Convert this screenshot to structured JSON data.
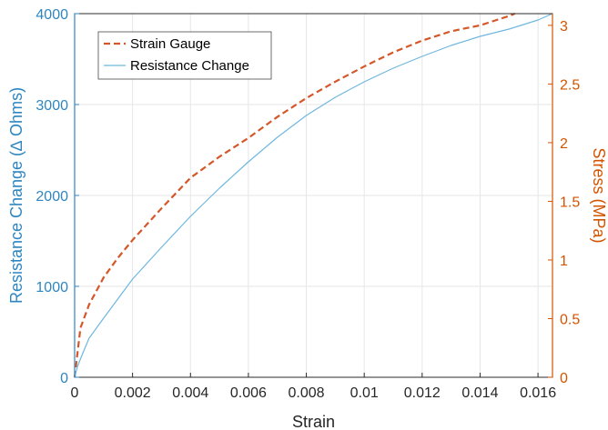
{
  "chart_data": {
    "type": "line",
    "title": "",
    "xlabel": "Strain",
    "ylabel_left": "Resistance Change (∆ Ohms)",
    "ylabel_right": "Stress (MPa)",
    "xlim": [
      0,
      0.0165
    ],
    "ylim_left": [
      0,
      4000
    ],
    "ylim_right": [
      0,
      3.1
    ],
    "x_ticks": [
      "0",
      "0.002",
      "0.004",
      "0.006",
      "0.008",
      "0.01",
      "0.012",
      "0.014",
      "0.016"
    ],
    "y_left_ticks": [
      "0",
      "1000",
      "2000",
      "3000",
      "4000"
    ],
    "y_right_ticks": [
      "0",
      "0.5",
      "1",
      "1.5",
      "2",
      "2.5",
      "3"
    ],
    "grid": true,
    "legend_position": "top-left",
    "colors": {
      "left_axis": "#2e86c1",
      "right_axis": "#d35400",
      "strain_gauge": "#d4572a",
      "resistance": "#6fb7df",
      "grid": "#e6e6e6",
      "frame": "#2b2b2b"
    },
    "series": [
      {
        "name": "Strain Gauge",
        "axis": "right",
        "style": "dashed",
        "x": [
          0,
          0.0002,
          0.0005,
          0.001,
          0.0015,
          0.002,
          0.003,
          0.004,
          0.005,
          0.006,
          0.007,
          0.008,
          0.009,
          0.01,
          0.011,
          0.012,
          0.013,
          0.014,
          0.0145,
          0.015,
          0.0152
        ],
        "y": [
          0,
          0.42,
          0.62,
          0.85,
          1.02,
          1.17,
          1.44,
          1.7,
          1.88,
          2.04,
          2.22,
          2.38,
          2.52,
          2.65,
          2.77,
          2.87,
          2.95,
          3.0,
          3.04,
          3.08,
          3.1
        ]
      },
      {
        "name": "Resistance Change",
        "axis": "left",
        "style": "solid",
        "x": [
          0,
          0.0001,
          0.0003,
          0.0005,
          0.001,
          0.002,
          0.003,
          0.004,
          0.005,
          0.006,
          0.007,
          0.008,
          0.009,
          0.01,
          0.011,
          0.012,
          0.013,
          0.014,
          0.015,
          0.016,
          0.0165
        ],
        "y": [
          0,
          120,
          280,
          430,
          650,
          1080,
          1430,
          1770,
          2080,
          2370,
          2640,
          2880,
          3080,
          3250,
          3400,
          3530,
          3650,
          3750,
          3830,
          3930,
          4000
        ]
      }
    ]
  }
}
